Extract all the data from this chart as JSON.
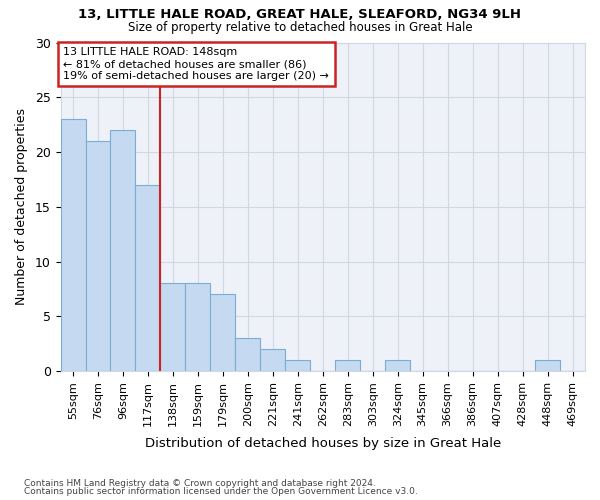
{
  "title1": "13, LITTLE HALE ROAD, GREAT HALE, SLEAFORD, NG34 9LH",
  "title2": "Size of property relative to detached houses in Great Hale",
  "xlabel": "Distribution of detached houses by size in Great Hale",
  "ylabel": "Number of detached properties",
  "categories": [
    "55sqm",
    "76sqm",
    "96sqm",
    "117sqm",
    "138sqm",
    "159sqm",
    "179sqm",
    "200sqm",
    "221sqm",
    "241sqm",
    "262sqm",
    "283sqm",
    "303sqm",
    "324sqm",
    "345sqm",
    "366sqm",
    "386sqm",
    "407sqm",
    "428sqm",
    "448sqm",
    "469sqm"
  ],
  "values": [
    23,
    21,
    22,
    17,
    8,
    8,
    7,
    3,
    2,
    1,
    0,
    1,
    0,
    1,
    0,
    0,
    0,
    0,
    0,
    1,
    0
  ],
  "bar_color": "#c5d9f0",
  "bar_edge_color": "#7aadd4",
  "vline_index": 4,
  "annotation_line1": "13 LITTLE HALE ROAD: 148sqm",
  "annotation_line2": "← 81% of detached houses are smaller (86)",
  "annotation_line3": "19% of semi-detached houses are larger (20) →",
  "annotation_box_color": "#ffffff",
  "annotation_box_edge": "#cc2222",
  "vline_color": "#cc2222",
  "grid_color": "#d0d8e4",
  "bg_color": "#eef2f8",
  "ylim": [
    0,
    30
  ],
  "yticks": [
    0,
    5,
    10,
    15,
    20,
    25,
    30
  ],
  "footnote1": "Contains HM Land Registry data © Crown copyright and database right 2024.",
  "footnote2": "Contains public sector information licensed under the Open Government Licence v3.0."
}
